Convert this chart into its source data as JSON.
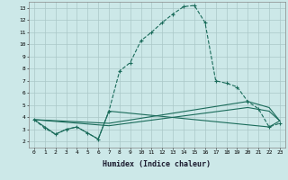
{
  "title": "",
  "xlabel": "Humidex (Indice chaleur)",
  "bg_color": "#cce8e8",
  "grid_color": "#aac8c8",
  "line_color": "#1a6b5a",
  "xlim": [
    -0.5,
    23.5
  ],
  "ylim": [
    1.5,
    13.5
  ],
  "xticks": [
    0,
    1,
    2,
    3,
    4,
    5,
    6,
    7,
    8,
    9,
    10,
    11,
    12,
    13,
    14,
    15,
    16,
    17,
    18,
    19,
    20,
    21,
    22,
    23
  ],
  "yticks": [
    2,
    3,
    4,
    5,
    6,
    7,
    8,
    9,
    10,
    11,
    12,
    13
  ],
  "curve1_x": [
    0,
    1,
    2,
    3,
    4,
    5,
    6,
    7,
    8,
    9,
    10,
    11,
    12,
    13,
    14,
    15,
    16,
    17,
    18,
    19,
    20,
    21,
    22,
    23
  ],
  "curve1_y": [
    3.8,
    3.1,
    2.6,
    3.0,
    3.2,
    2.7,
    2.2,
    4.5,
    7.8,
    8.5,
    10.3,
    11.0,
    11.8,
    12.5,
    13.1,
    13.2,
    11.8,
    7.0,
    6.8,
    6.5,
    5.3,
    4.7,
    3.2,
    3.5
  ],
  "curve2_x": [
    0,
    2,
    3,
    4,
    5,
    6,
    7,
    22,
    23
  ],
  "curve2_y": [
    3.8,
    2.6,
    3.0,
    3.2,
    2.7,
    2.2,
    4.5,
    3.2,
    3.7
  ],
  "curve3_x": [
    0,
    7,
    20,
    22,
    23
  ],
  "curve3_y": [
    3.8,
    3.5,
    5.3,
    4.8,
    3.7
  ],
  "curve4_x": [
    0,
    7,
    20,
    22,
    23
  ],
  "curve4_y": [
    3.8,
    3.3,
    4.8,
    4.5,
    3.7
  ]
}
